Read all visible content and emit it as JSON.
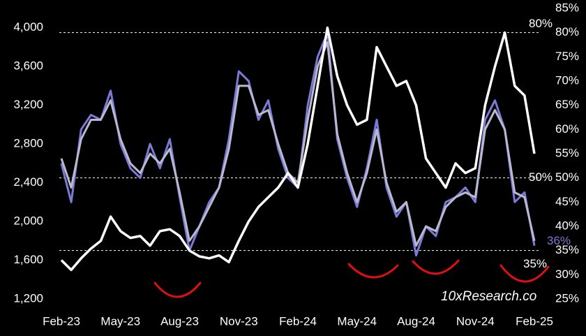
{
  "chart_data": {
    "type": "line",
    "categories": [
      "Feb-23",
      null,
      null,
      null,
      null,
      null,
      "May-23",
      null,
      null,
      null,
      null,
      null,
      "Aug-23",
      null,
      null,
      null,
      null,
      null,
      "Nov-23",
      null,
      null,
      null,
      null,
      null,
      "Feb-24",
      null,
      null,
      null,
      null,
      null,
      "May-24",
      null,
      null,
      null,
      null,
      null,
      "Aug-24",
      null,
      null,
      null,
      null,
      null,
      "Nov-24",
      null,
      null,
      null,
      null,
      null,
      "Feb-25"
    ],
    "ylim": [
      1200,
      4200
    ],
    "yticks": [
      {
        "value": 1200,
        "label": "1,200"
      },
      {
        "value": 1600,
        "label": "1,600"
      },
      {
        "value": 2000,
        "label": "2,000"
      },
      {
        "value": 2400,
        "label": "2,400"
      },
      {
        "value": 2800,
        "label": "2,800"
      },
      {
        "value": 3200,
        "label": "3,200"
      },
      {
        "value": 3600,
        "label": "3,600"
      },
      {
        "value": 4000,
        "label": "4,000"
      }
    ],
    "y2lim": [
      25,
      85
    ],
    "y2ticks": [
      {
        "value": 25,
        "label": "25%"
      },
      {
        "value": 30,
        "label": "30%"
      },
      {
        "value": 35,
        "label": "35%"
      },
      {
        "value": 40,
        "label": "40%"
      },
      {
        "value": 45,
        "label": "45%"
      },
      {
        "value": 50,
        "label": "50%"
      },
      {
        "value": 55,
        "label": "55%"
      },
      {
        "value": 60,
        "label": "60%"
      },
      {
        "value": 65,
        "label": "65%"
      },
      {
        "value": 70,
        "label": "70%"
      },
      {
        "value": 75,
        "label": "75%"
      },
      {
        "value": 80,
        "label": "80%"
      },
      {
        "value": 85,
        "label": "85%"
      }
    ],
    "reference_lines": [
      {
        "value": 80,
        "label": "80%"
      },
      {
        "value": 50,
        "label": "50%"
      },
      {
        "value": 35,
        "label": "35%"
      }
    ],
    "series": [
      {
        "color": "#ffffff",
        "axis": "y",
        "values": [
          1600,
          1500,
          1620,
          1720,
          1800,
          2050,
          1900,
          1830,
          1850,
          1750,
          1900,
          1920,
          1850,
          1700,
          1640,
          1620,
          1650,
          1580,
          1800,
          2000,
          2150,
          2250,
          2350,
          2500,
          2350,
          2800,
          3400,
          4000,
          3500,
          3200,
          3000,
          3050,
          3800,
          3600,
          3400,
          3450,
          3200,
          2650,
          2500,
          2350,
          2600,
          2500,
          2550,
          3200,
          3600,
          3950,
          3400,
          3300,
          2700
        ]
      },
      {
        "color": "#7b7bd6",
        "axis": "y2",
        "end_label": "36%",
        "values": [
          53,
          45,
          60,
          63,
          62,
          68,
          57,
          52,
          50,
          57,
          52,
          58,
          46,
          35,
          40,
          45,
          48,
          58,
          72,
          70,
          62,
          66,
          56,
          50,
          48,
          65,
          75,
          80,
          58,
          50,
          44,
          52,
          62,
          48,
          42,
          45,
          34,
          40,
          38,
          45,
          46,
          48,
          45,
          62,
          66,
          60,
          45,
          47,
          36
        ]
      },
      {
        "color": "#b9b9cf",
        "axis": "y2",
        "values": [
          54,
          48,
          58,
          62,
          62,
          66,
          58,
          53,
          51,
          55,
          53,
          56,
          47,
          37,
          40,
          44,
          48,
          56,
          69,
          69,
          63,
          64,
          57,
          51,
          49,
          62,
          73,
          78,
          59,
          51,
          45,
          51,
          60,
          49,
          43,
          45,
          36,
          40,
          39,
          44,
          46,
          47,
          46,
          60,
          64,
          60,
          47,
          46,
          37
        ]
      }
    ],
    "watermark": "10xResearch.co"
  }
}
